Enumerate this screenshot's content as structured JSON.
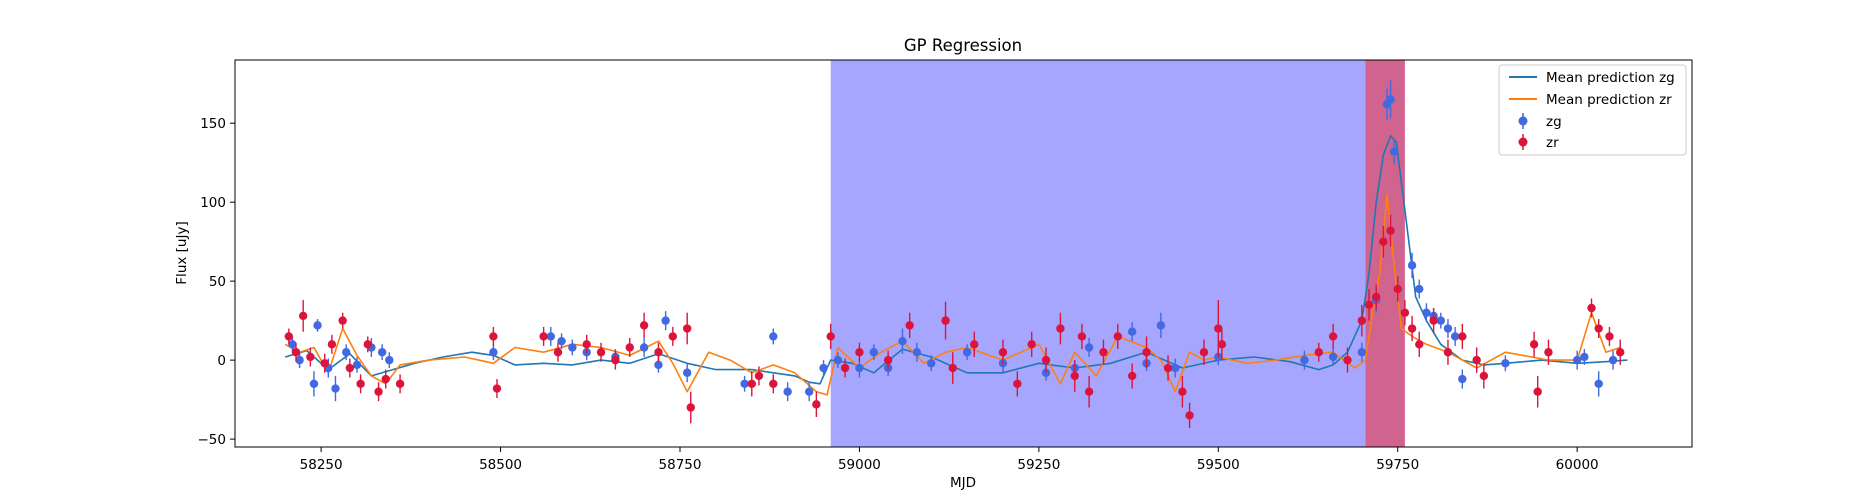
{
  "chart_data": {
    "type": "scatter",
    "title": "GP Regression",
    "xlabel": "MJD",
    "ylabel": "Flux [uJy]",
    "xlim": [
      58130,
      60160
    ],
    "ylim": [
      -55,
      190
    ],
    "x_ticks": [
      58250,
      58500,
      58750,
      59000,
      59250,
      59500,
      59750,
      60000
    ],
    "y_ticks": [
      -50,
      0,
      50,
      100,
      150
    ],
    "grid": false,
    "legend_position": "top-right",
    "shaded_regions": [
      {
        "x_start": 58960,
        "x_end": 59705,
        "color": "#0000ff",
        "opacity": 0.35
      },
      {
        "x_start": 59705,
        "x_end": 59760,
        "color": "#c0306a",
        "opacity": 0.75
      }
    ],
    "series": [
      {
        "name": "Mean prediction zg",
        "kind": "line",
        "color": "#1f77b4",
        "x": [
          58200,
          58230,
          58260,
          58290,
          58320,
          58350,
          58380,
          58420,
          58460,
          58490,
          58520,
          58560,
          58600,
          58640,
          58680,
          58720,
          58760,
          58800,
          58850,
          58880,
          58910,
          58930,
          58945,
          58960,
          58990,
          59020,
          59060,
          59100,
          59150,
          59200,
          59250,
          59300,
          59350,
          59400,
          59450,
          59500,
          59550,
          59600,
          59640,
          59660,
          59680,
          59700,
          59710,
          59720,
          59730,
          59740,
          59748,
          59760,
          59775,
          59790,
          59810,
          59840,
          59870,
          59900,
          59950,
          60000,
          60040,
          60070
        ],
        "y": [
          2,
          6,
          -6,
          4,
          -10,
          -6,
          -2,
          2,
          5,
          3,
          -3,
          -2,
          -3,
          0,
          -2,
          4,
          -2,
          -6,
          -6,
          -8,
          -10,
          -14,
          -15,
          0,
          -2,
          -8,
          7,
          2,
          -8,
          -8,
          -2,
          -5,
          -2,
          5,
          -5,
          0,
          2,
          -1,
          -6,
          -3,
          5,
          25,
          55,
          100,
          130,
          142,
          138,
          95,
          40,
          25,
          10,
          0,
          -3,
          -2,
          0,
          -2,
          -1,
          0
        ]
      },
      {
        "name": "Mean prediction zr",
        "kind": "line",
        "color": "#ff7f0e",
        "x": [
          58200,
          58220,
          58240,
          58260,
          58280,
          58300,
          58320,
          58340,
          58360,
          58400,
          58450,
          58490,
          58520,
          58560,
          58600,
          58640,
          58680,
          58720,
          58740,
          58760,
          58790,
          58820,
          58850,
          58880,
          58910,
          58940,
          58955,
          58970,
          59000,
          59030,
          59060,
          59090,
          59120,
          59150,
          59200,
          59250,
          59280,
          59300,
          59330,
          59360,
          59400,
          59420,
          59440,
          59460,
          59480,
          59500,
          59540,
          59580,
          59620,
          59660,
          59690,
          59705,
          59715,
          59725,
          59735,
          59745,
          59755,
          59770,
          59790,
          59820,
          59860,
          59900,
          59960,
          60000,
          60020,
          60040,
          60060
        ],
        "y": [
          10,
          5,
          8,
          -8,
          20,
          3,
          -10,
          -15,
          -3,
          0,
          2,
          -2,
          8,
          5,
          10,
          8,
          3,
          12,
          -2,
          -20,
          5,
          0,
          -8,
          -3,
          -8,
          -20,
          -22,
          8,
          -5,
          5,
          12,
          -2,
          5,
          8,
          0,
          10,
          -15,
          5,
          -10,
          15,
          8,
          0,
          -20,
          5,
          0,
          2,
          -2,
          0,
          3,
          5,
          -5,
          0,
          30,
          55,
          105,
          60,
          20,
          15,
          10,
          5,
          -5,
          5,
          0,
          0,
          30,
          5,
          8
        ]
      },
      {
        "name": "zg",
        "kind": "errorbar",
        "color": "#4169e1",
        "x": [
          58210,
          58220,
          58240,
          58245,
          58260,
          58270,
          58285,
          58300,
          58320,
          58335,
          58345,
          58490,
          58570,
          58585,
          58600,
          58620,
          58660,
          58700,
          58720,
          58730,
          58760,
          58840,
          58880,
          58900,
          58930,
          58950,
          58970,
          59000,
          59020,
          59040,
          59060,
          59080,
          59100,
          59150,
          59200,
          59260,
          59300,
          59320,
          59380,
          59400,
          59420,
          59440,
          59500,
          59620,
          59660,
          59700,
          59720,
          59735,
          59740,
          59745,
          59770,
          59780,
          59790,
          59800,
          59810,
          59820,
          59830,
          59840,
          59900,
          60000,
          60010,
          60030,
          60050
        ],
        "y": [
          10,
          0,
          -15,
          22,
          -5,
          -18,
          5,
          -3,
          8,
          5,
          0,
          5,
          15,
          12,
          8,
          5,
          2,
          8,
          -3,
          25,
          -8,
          -15,
          15,
          -20,
          -20,
          -5,
          0,
          -5,
          5,
          -5,
          12,
          5,
          -2,
          5,
          -2,
          -8,
          -5,
          8,
          18,
          -2,
          22,
          -5,
          2,
          0,
          2,
          5,
          38,
          162,
          165,
          132,
          60,
          45,
          30,
          28,
          25,
          20,
          15,
          -12,
          -2,
          0,
          2,
          -15,
          0
        ],
        "err": [
          5,
          5,
          8,
          4,
          6,
          8,
          5,
          5,
          6,
          5,
          5,
          5,
          6,
          5,
          5,
          5,
          5,
          6,
          5,
          6,
          6,
          5,
          5,
          6,
          6,
          5,
          5,
          6,
          5,
          5,
          8,
          6,
          5,
          5,
          6,
          5,
          5,
          6,
          6,
          5,
          8,
          6,
          5,
          6,
          5,
          6,
          8,
          10,
          12,
          8,
          8,
          6,
          6,
          5,
          5,
          6,
          6,
          6,
          5,
          6,
          5,
          8,
          6
        ]
      },
      {
        "name": "zr",
        "kind": "errorbar",
        "color": "#dc143c",
        "x": [
          58205,
          58215,
          58225,
          58235,
          58255,
          58265,
          58280,
          58290,
          58305,
          58315,
          58330,
          58340,
          58360,
          58490,
          58495,
          58560,
          58580,
          58620,
          58640,
          58660,
          58680,
          58700,
          58720,
          58740,
          58760,
          58765,
          58850,
          58860,
          58880,
          58940,
          58960,
          58980,
          59000,
          59040,
          59070,
          59120,
          59130,
          59160,
          59200,
          59220,
          59240,
          59260,
          59280,
          59300,
          59310,
          59320,
          59340,
          59360,
          59380,
          59400,
          59430,
          59450,
          59460,
          59480,
          59500,
          59505,
          59640,
          59660,
          59680,
          59700,
          59710,
          59720,
          59730,
          59740,
          59750,
          59760,
          59770,
          59780,
          59800,
          59820,
          59840,
          59860,
          59870,
          59940,
          59945,
          59960,
          60020,
          60030,
          60045,
          60060
        ],
        "y": [
          15,
          5,
          28,
          2,
          -2,
          10,
          25,
          -5,
          -15,
          10,
          -20,
          -12,
          -15,
          15,
          -18,
          15,
          5,
          10,
          5,
          0,
          8,
          22,
          5,
          15,
          20,
          -30,
          -15,
          -10,
          -15,
          -28,
          15,
          -5,
          5,
          0,
          22,
          25,
          -5,
          10,
          5,
          -15,
          10,
          0,
          20,
          -10,
          15,
          -20,
          5,
          15,
          -10,
          5,
          -5,
          -20,
          -35,
          5,
          20,
          10,
          5,
          15,
          0,
          25,
          35,
          40,
          75,
          82,
          45,
          30,
          20,
          10,
          25,
          5,
          15,
          0,
          -10,
          10,
          -20,
          5,
          33,
          20,
          15,
          5
        ],
        "err": [
          5,
          6,
          10,
          6,
          6,
          6,
          5,
          6,
          6,
          5,
          6,
          6,
          6,
          6,
          6,
          6,
          6,
          6,
          6,
          6,
          6,
          8,
          6,
          6,
          10,
          10,
          8,
          6,
          6,
          8,
          8,
          6,
          6,
          6,
          8,
          12,
          10,
          8,
          8,
          8,
          8,
          8,
          10,
          10,
          8,
          10,
          8,
          8,
          8,
          10,
          8,
          10,
          8,
          8,
          18,
          10,
          6,
          8,
          8,
          10,
          10,
          8,
          10,
          10,
          8,
          8,
          8,
          8,
          8,
          8,
          8,
          8,
          8,
          8,
          10,
          8,
          6,
          6,
          6,
          8
        ]
      }
    ]
  }
}
